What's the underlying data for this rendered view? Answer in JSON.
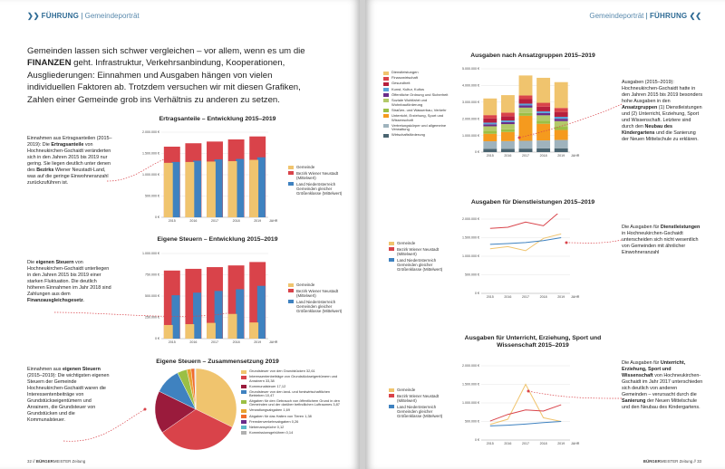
{
  "left": {
    "header": {
      "arrows": "❯❯",
      "section": "FÜHRUNG",
      "subsection": "Gemeindeporträt"
    },
    "intro": {
      "part1": "Gemeinden lassen sich schwer vergleichen – vor allem, wenn es um die ",
      "bold": "FINANZEN",
      "part2": " geht. Infrastruktur, Verkehrsanbindung, Kooperationen, Ausgliederungen: Einnahmen und Ausgaben hängen von vielen individuellen Faktoren ab. Trotzdem versuchen wir mit diesen Grafiken, Zahlen einer Gemeinde grob ins Verhältnis zu anderen zu setzen."
    },
    "note1": {
      "t1": "Einnahmen aus Ertragsanteilen (2015–2019): Die ",
      "b1": "Ertragsanteile",
      "t2": " von Hochneukirchen-Gschaidt veränderten sich in den Jahren 2015 bis 2019 nur gering. Sie liegen deutlich unter denen des ",
      "b2": "Bezirks",
      "t3": " Wiener Neustadt-Land, was auf die geringe Einwohneranzahl zurückzuführen ist."
    },
    "note2": {
      "t1": "Die ",
      "b1": "eigenen Steuern",
      "t2": " von Hochneukirchen-Gschaidt unterliegen in den Jahren 2015 bis 2019 einer starken Fluktuation. Die deutlich höheren Einnahmen im Jahr 2018 sind Zahlungen aus dem ",
      "b2": "Finanzausgleichsgesetz",
      "t3": "."
    },
    "note3": {
      "t1": "Einnahmen aus ",
      "b1": "eigenen Steuern",
      "t2": " (2015–2019): Die wichtigsten eigenen Steuern der Gemeinde Hochneukirchen-Gschaidt waren die Interessentenbeiträge von Grundstückseigentümern und Anrainern, die Grundsteuer von Grundstücken und die Kommunalsteuer."
    },
    "footer": {
      "page": "32",
      "brand_bold": "BÜRGER",
      "brand_rest": "MEISTER Zeitung"
    }
  },
  "right": {
    "header": {
      "subsection": "Gemeindeporträt",
      "section": "FÜHRUNG",
      "arrows": "❮❮"
    },
    "note1": {
      "t1": "Ausgaben (2015–2019): Hochneukirchen-Gschaidt hatte in den Jahren 2015 bis 2019 besonders hohe Ausgaben in den ",
      "b1": "Ansatzgruppen",
      "t2": " (1) Dienstleistungen und (2) Unterricht, Erziehung, Sport und Wissenschaft. Letztere sind durch den ",
      "b2": "Neubau des Kindergartens",
      "t3": " und die Sanierung der Neuen Mittelschule zu erklären."
    },
    "note2": {
      "t1": "Die Ausgaben für ",
      "b1": "Dienstleistungen",
      "t2": " in Hochneukirchen-Gschaidt unterscheiden sich nicht wesentlich von Gemeinden mit ähnlicher Einwohneranzahl"
    },
    "note3": {
      "t1": "Die Ausgaben für ",
      "b1": "Unterricht, Erziehung, Sport und Wissenschaft",
      "t2": " von Hochneukirchen-Gschaidt im Jahr 2017 unterschieden sich deutlich von anderen Gemeinden – verursacht durch die ",
      "b2": "Sanierung",
      "t3": " der Neuen Mittelschule und den Neubau des Kindergartens."
    },
    "footer": {
      "brand_bold": "BÜRGER",
      "brand_rest": "MEISTER Zeitung",
      "page": "33"
    }
  },
  "colors": {
    "gemeinde": "#f0c46e",
    "bezirk": "#d9434a",
    "land": "#3f82c0",
    "accent": "#2d6a94"
  },
  "chart_data": [
    {
      "id": "ertragsanteile",
      "type": "bar",
      "title": "Ertragsanteile – Entwicklung 2015–2019",
      "categories": [
        "2015",
        "2016",
        "2017",
        "2018",
        "2019"
      ],
      "x_unit": "JAHR",
      "ylim": [
        0,
        2000000
      ],
      "yticks": [
        "0 €",
        "500.000 €",
        "1.000.000 €",
        "1.500.000 €",
        "2.000.000 €"
      ],
      "series": [
        {
          "name": "Gemeinde",
          "values": [
            1280000,
            1300000,
            1310000,
            1320000,
            1350000
          ]
        },
        {
          "name": "Bezirk Wiener Neustadt (Mittelwert)",
          "values": [
            1660000,
            1740000,
            1780000,
            1830000,
            1900000
          ]
        },
        {
          "name": "Land Niederösterreich Gemeinden gleicher Größenklasse (Mittelwert)",
          "values": [
            1300000,
            1330000,
            1360000,
            1370000,
            1410000
          ]
        }
      ],
      "legend": "right"
    },
    {
      "id": "eigene_steuern",
      "type": "bar",
      "title": "Eigene Steuern – Entwicklung 2015–2019",
      "categories": [
        "2015",
        "2016",
        "2017",
        "2018",
        "2019"
      ],
      "x_unit": "JAHR",
      "ylim": [
        0,
        1000000
      ],
      "yticks": [
        "0 €",
        "250.000 €",
        "500.000 €",
        "750.000 €",
        "1.000.000 €"
      ],
      "series": [
        {
          "name": "Gemeinde",
          "values": [
            160000,
            170000,
            185000,
            290000,
            190000
          ]
        },
        {
          "name": "Bezirk Wiener Neustadt (Mittelwert)",
          "values": [
            800000,
            820000,
            840000,
            860000,
            900000
          ]
        },
        {
          "name": "Land Niederösterreich Gemeinden gleicher Größenklasse (Mittelwert)",
          "values": [
            510000,
            540000,
            560000,
            580000,
            620000
          ]
        }
      ],
      "legend": "right"
    },
    {
      "id": "zusammensetzung",
      "type": "pie",
      "title": "Eigene Steuern – Zusammensetzung 2019",
      "slices": [
        {
          "label": "Grundsteuer von den Grundstücken 32,61",
          "value": 32.61,
          "color": "#f0c46e"
        },
        {
          "label": "Interessentenbeiträge von Grundstückseigentümern und Anrainern 33,38",
          "value": 33.38,
          "color": "#d9434a"
        },
        {
          "label": "Kommunalsteuer 17,12",
          "value": 17.12,
          "color": "#9a1b3c"
        },
        {
          "label": "Grundsteuer von den land- und forstwirtschaftlichen Betrieben 10,47",
          "value": 10.47,
          "color": "#3f82c0"
        },
        {
          "label": "Abgaben für den Gebrauch von öffentlichem Grund in den Gemeinden und der darüber befindlichen Luftraumes 3,87",
          "value": 3.87,
          "color": "#9bbf45"
        },
        {
          "label": "Verwaltungsabgaben 1,69",
          "value": 1.69,
          "color": "#e8a230"
        },
        {
          "label": "Abgaben für das Halten von Tieren 1,38",
          "value": 1.38,
          "color": "#f06c2c"
        },
        {
          "label": "Fremdenverkehrsabgaben 0,26",
          "value": 0.26,
          "color": "#6a2c8a"
        },
        {
          "label": "Nebenansprüche 0,12",
          "value": 0.12,
          "color": "#5cb8c8"
        },
        {
          "label": "Kommissionsgebühren 0,14",
          "value": 0.14,
          "color": "#b0b0b0"
        }
      ],
      "legend": "right"
    },
    {
      "id": "ansatzgruppen",
      "type": "bar",
      "stacked": true,
      "title": "Ausgaben nach Ansatzgruppen 2015–2019",
      "categories": [
        "2015",
        "2016",
        "2017",
        "2018",
        "2019"
      ],
      "x_unit": "JAHR",
      "ylim": [
        0,
        5000000
      ],
      "yticks": [
        "0 €",
        "1.000.000 €",
        "2.000.000 €",
        "3.000.000 €",
        "4.000.000 €",
        "5.000.000 €"
      ],
      "series": [
        {
          "name": "Wirtschaftsförderung",
          "color": "#4a6470",
          "values": [
            200000,
            200000,
            210000,
            220000,
            230000
          ]
        },
        {
          "name": "Vertretungskörper und allgemeine Verwaltung",
          "color": "#9fb3bd",
          "values": [
            450000,
            460000,
            470000,
            480000,
            500000
          ]
        },
        {
          "name": "Unterricht, Erziehung, Sport und Wissenschaft",
          "color": "#f59a1e",
          "values": [
            450000,
            550000,
            1500000,
            1000000,
            600000
          ]
        },
        {
          "name": "Straßen- und Wasserbau, Verkehr",
          "color": "#9bbf45",
          "values": [
            150000,
            160000,
            170000,
            180000,
            190000
          ]
        },
        {
          "name": "Soziale Wohlfahrt und Wohnbauförderung",
          "color": "#b3c96a",
          "values": [
            300000,
            310000,
            320000,
            330000,
            340000
          ]
        },
        {
          "name": "Öffentliche Ordnung und Sicherheit",
          "color": "#6a2c8a",
          "values": [
            120000,
            120000,
            130000,
            130000,
            140000
          ]
        },
        {
          "name": "Kunst, Kultur, Kultus",
          "color": "#5aa4d8",
          "values": [
            100000,
            100000,
            110000,
            110000,
            120000
          ]
        },
        {
          "name": "Gesundheit",
          "color": "#b71f3d",
          "values": [
            250000,
            260000,
            270000,
            280000,
            290000
          ]
        },
        {
          "name": "Finanzwirtschaft",
          "color": "#d9434a",
          "values": [
            200000,
            210000,
            220000,
            230000,
            240000
          ]
        },
        {
          "name": "Dienstleistungen",
          "color": "#f0c46e",
          "values": [
            1000000,
            1050000,
            1200000,
            1500000,
            1550000
          ]
        }
      ],
      "legend": "left"
    },
    {
      "id": "dienstleistungen",
      "type": "line",
      "title": "Ausgaben für Dienstleistungen 2015–2019",
      "categories": [
        "2015",
        "2016",
        "2017",
        "2018",
        "2019"
      ],
      "x_unit": "JAHR",
      "ylim": [
        0,
        2000000
      ],
      "yticks": [
        "0 €",
        "500.000 €",
        "1.000.000 €",
        "1.500.000 €",
        "2.000.000 €"
      ],
      "series": [
        {
          "name": "Gemeinde",
          "values": [
            1200000,
            1260000,
            1150000,
            1480000,
            1600000
          ]
        },
        {
          "name": "Bezirk Wiener Neustadt (Mittelwert)",
          "values": [
            1750000,
            1780000,
            1920000,
            1820000,
            2230000
          ]
        },
        {
          "name": "Land Niederösterreich Gemeinden gleicher Größenklasse (Mittelwert)",
          "values": [
            1320000,
            1340000,
            1370000,
            1420000,
            1500000
          ]
        }
      ],
      "legend": "left"
    },
    {
      "id": "unterricht",
      "type": "line",
      "title": "Ausgaben für Unterricht, Erziehung, Sport und Wissenschaft 2015–2019",
      "categories": [
        "2015",
        "2016",
        "2017",
        "2018",
        "2019"
      ],
      "x_unit": "JAHR",
      "ylim": [
        0,
        2000000
      ],
      "yticks": [
        "0 €",
        "500.000 €",
        "1.000.000 €",
        "1.500.000 €",
        "2.000.000 €"
      ],
      "series": [
        {
          "name": "Gemeinde",
          "values": [
            420000,
            560000,
            1500000,
            600000,
            500000
          ]
        },
        {
          "name": "Bezirk Wiener Neustadt (Mittelwert)",
          "values": [
            510000,
            690000,
            810000,
            780000,
            950000
          ]
        },
        {
          "name": "Land Niederösterreich Gemeinden gleicher Größenklasse (Mittelwert)",
          "values": [
            380000,
            400000,
            430000,
            470000,
            500000
          ]
        }
      ],
      "legend": "left"
    }
  ]
}
